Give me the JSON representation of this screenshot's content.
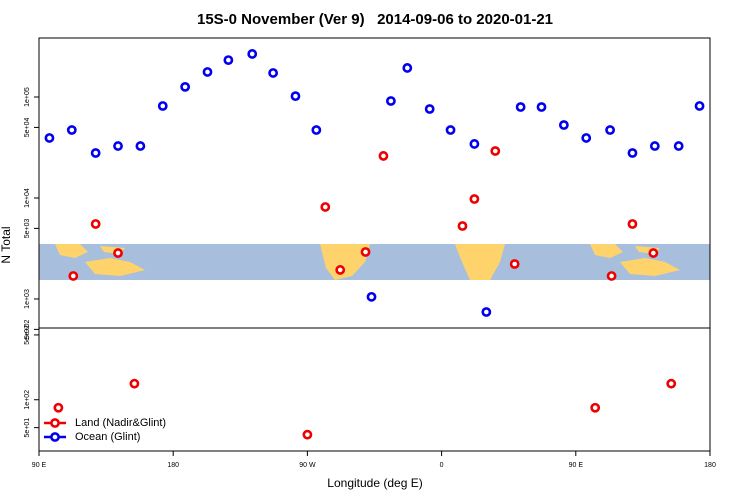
{
  "chart_data": [
    {
      "type": "scatter",
      "title": "15S-0 November (Ver 9)   2014-09-06 to 2020-01-21",
      "ylabel": "N Total",
      "log_y": true,
      "xlim": [
        90,
        540
      ],
      "ylim": [
        516,
        384000
      ],
      "yticks": [
        {
          "value": 500,
          "label": "5e+02"
        },
        {
          "value": 1000,
          "label": "1e+03"
        },
        {
          "value": 5000,
          "label": "5e+03"
        },
        {
          "value": 10000,
          "label": "1e+04"
        },
        {
          "value": 50000,
          "label": "5e+04"
        },
        {
          "value": 100000,
          "label": "1e+05"
        }
      ],
      "series": [
        {
          "color": "#ee0000",
          "x": [
            128,
            143,
            113,
            282,
            292,
            309,
            321,
            374,
            382,
            396,
            409,
            474,
            488,
            502
          ],
          "values": [
            5530,
            2850,
            1690,
            8150,
            1940,
            2920,
            26100,
            5280,
            9770,
            29200,
            2220,
            1690,
            5530,
            2850
          ]
        },
        {
          "color": "#0000ee",
          "x": [
            97,
            112,
            128,
            143,
            158,
            173,
            188,
            203,
            217,
            233,
            247,
            262,
            276,
            313,
            326,
            337,
            352,
            366,
            382,
            390,
            413,
            427,
            442,
            457,
            473,
            488,
            503,
            519,
            533
          ],
          "values": [
            39300,
            47100,
            27900,
            32700,
            32700,
            81500,
            126000,
            177000,
            232000,
            267000,
            173000,
            102000,
            47100,
            1050,
            91300,
            194000,
            76100,
            47100,
            34300,
            743,
            79600,
            79600,
            52800,
            39300,
            47100,
            27900,
            32700,
            32700,
            81500
          ]
        }
      ]
    },
    {
      "type": "scatter",
      "xlabel": "Longitude (deg E)",
      "log_y": true,
      "xlim": [
        90,
        540
      ],
      "ylim": [
        28,
        594
      ],
      "xticks": [
        {
          "value": 90,
          "label": "90 E"
        },
        180,
        {
          "value": 270,
          "label": "90 W"
        },
        {
          "value": 360,
          "label": "0"
        },
        {
          "value": 450,
          "label": "90 E"
        },
        {
          "value": 540,
          "label": "180"
        }
      ],
      "yticks": [
        {
          "value": 50,
          "label": "5e+01"
        },
        {
          "value": 100,
          "label": "1e+02"
        },
        {
          "value": 500,
          "label": "5e+02"
        }
      ],
      "legend": "lower left",
      "series": [
        {
          "name": "Land (Nadir&Glint)",
          "color": "#ee0000",
          "x": [
            103,
            154,
            270,
            463,
            514
          ],
          "values": [
            82,
            149,
            42,
            82,
            149
          ]
        },
        {
          "name": "Ocean (Glint)",
          "color": "#0000ee",
          "x": [],
          "values": []
        }
      ]
    }
  ]
}
